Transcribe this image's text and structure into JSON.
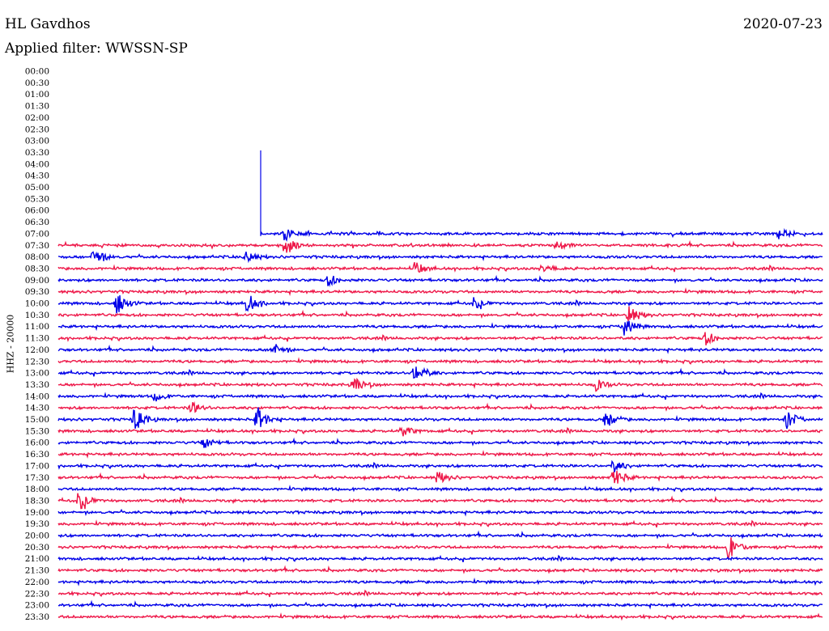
{
  "header": {
    "station": "HL Gavdhos",
    "date": "2020-07-23",
    "filter": "Applied filter: WWSSN-SP"
  },
  "colors": {
    "blue": "#0000e8",
    "red": "#ee1849",
    "text": "#000000"
  },
  "chart_data": {
    "type": "line",
    "title": "HL Gavdhos",
    "subtitle": "Applied filter: WWSSN-SP",
    "ylabel": "HHZ - 20000",
    "xlabel": "",
    "rows": [
      "00:00",
      "00:30",
      "01:00",
      "01:30",
      "02:00",
      "02:30",
      "03:00",
      "03:30",
      "04:00",
      "04:30",
      "05:00",
      "05:30",
      "06:00",
      "06:30",
      "07:00",
      "07:30",
      "08:00",
      "08:30",
      "09:00",
      "09:30",
      "10:00",
      "10:30",
      "11:00",
      "11:30",
      "12:00",
      "12:30",
      "13:00",
      "13:30",
      "14:00",
      "14:30",
      "15:00",
      "15:30",
      "16:00",
      "16:30",
      "17:00",
      "17:30",
      "18:00",
      "18:30",
      "19:00",
      "19:30",
      "20:00",
      "20:30",
      "21:00",
      "21:30",
      "22:00",
      "22:30",
      "23:00",
      "23:30"
    ],
    "first_trace_row": "07:00",
    "x_minutes": [
      0,
      30
    ],
    "trace_colors_alternate": [
      "blue",
      "red"
    ],
    "events": [
      {
        "row": "07:00",
        "minute": 8.9,
        "amp": 0.55
      },
      {
        "row": "07:00",
        "minute": 28.3,
        "amp": 0.45
      },
      {
        "row": "07:30",
        "minute": 8.9,
        "amp": 0.9
      },
      {
        "row": "07:30",
        "minute": 19.6,
        "amp": 0.3
      },
      {
        "row": "08:00",
        "minute": 1.4,
        "amp": 0.8
      },
      {
        "row": "08:00",
        "minute": 7.3,
        "amp": 0.6
      },
      {
        "row": "08:30",
        "minute": 14.0,
        "amp": 0.5
      },
      {
        "row": "08:30",
        "minute": 19.0,
        "amp": 0.4
      },
      {
        "row": "09:00",
        "minute": 10.6,
        "amp": 0.5
      },
      {
        "row": "10:00",
        "minute": 2.3,
        "amp": 0.9
      },
      {
        "row": "10:00",
        "minute": 7.4,
        "amp": 0.9
      },
      {
        "row": "10:00",
        "minute": 16.3,
        "amp": 0.5
      },
      {
        "row": "10:30",
        "minute": 22.4,
        "amp": 0.8
      },
      {
        "row": "11:00",
        "minute": 22.2,
        "amp": 0.9
      },
      {
        "row": "11:30",
        "minute": 25.4,
        "amp": 0.6
      },
      {
        "row": "12:00",
        "minute": 8.4,
        "amp": 0.6
      },
      {
        "row": "13:00",
        "minute": 14.0,
        "amp": 1.0
      },
      {
        "row": "13:30",
        "minute": 11.6,
        "amp": 0.6
      },
      {
        "row": "13:30",
        "minute": 21.1,
        "amp": 0.5
      },
      {
        "row": "14:00",
        "minute": 3.8,
        "amp": 0.4
      },
      {
        "row": "14:30",
        "minute": 5.2,
        "amp": 0.5
      },
      {
        "row": "15:00",
        "minute": 3.0,
        "amp": 1.0
      },
      {
        "row": "15:00",
        "minute": 7.8,
        "amp": 1.0
      },
      {
        "row": "15:00",
        "minute": 21.5,
        "amp": 0.7
      },
      {
        "row": "15:00",
        "minute": 28.6,
        "amp": 0.8
      },
      {
        "row": "15:30",
        "minute": 13.5,
        "amp": 0.5
      },
      {
        "row": "16:00",
        "minute": 5.7,
        "amp": 0.5
      },
      {
        "row": "17:00",
        "minute": 21.8,
        "amp": 0.5
      },
      {
        "row": "17:30",
        "minute": 14.9,
        "amp": 0.5
      },
      {
        "row": "17:30",
        "minute": 21.8,
        "amp": 0.9
      },
      {
        "row": "18:30",
        "minute": 0.8,
        "amp": 0.9
      },
      {
        "row": "20:30",
        "minute": 26.3,
        "amp": 1.0
      }
    ]
  }
}
